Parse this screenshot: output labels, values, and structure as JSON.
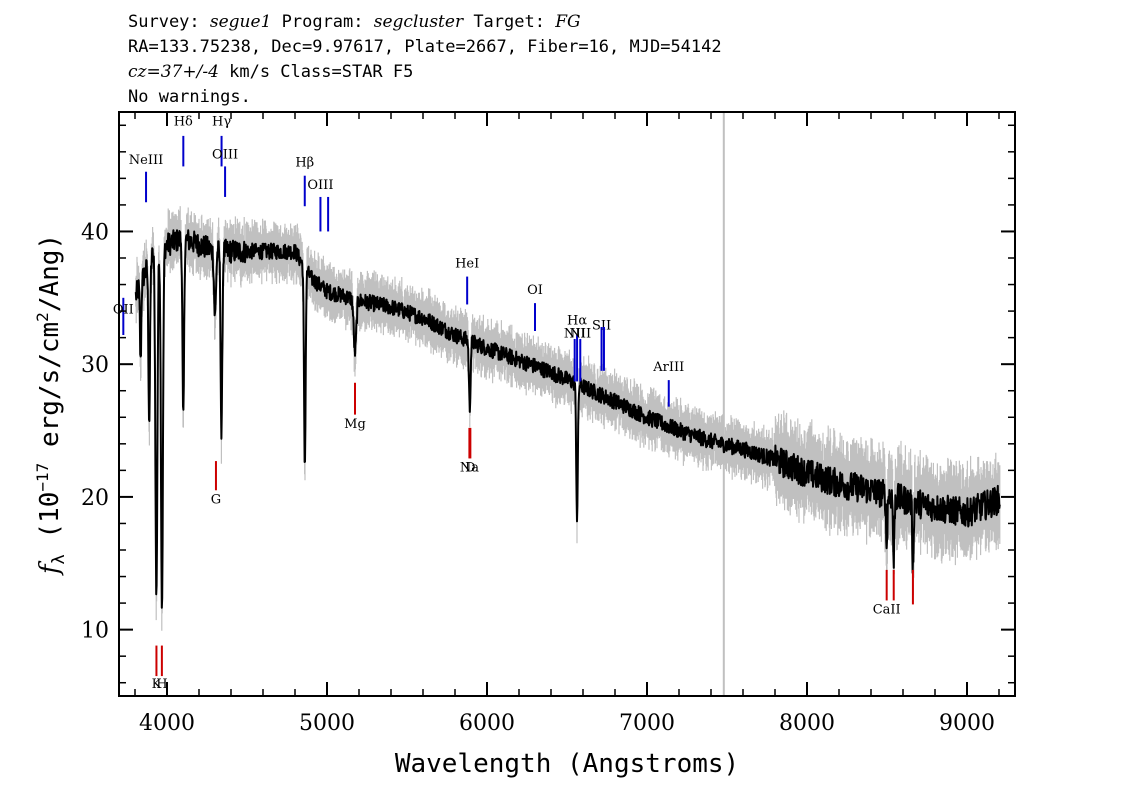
{
  "header": {
    "line1": {
      "survey_label": "Survey: ",
      "survey": "segue1",
      "program_label": " Program: ",
      "program": "segcluster",
      "target_label": " Target: ",
      "target": "FG"
    },
    "line2": "RA=133.75238, Dec=9.97617, Plate=2667, Fiber=16, MJD=54142",
    "line3": {
      "cz": "cz=37+/-4",
      "rest": " km/s Class=STAR F5"
    },
    "line4": "No warnings."
  },
  "chart_data": {
    "type": "line",
    "xlabel": "Wavelength (Angstroms)",
    "ylabel_prefix": "f",
    "ylabel_sub": "λ",
    "ylabel_text": " (10",
    "ylabel_exp": "−17",
    "ylabel_units": " erg/s/cm",
    "ylabel_units_exp": "2",
    "ylabel_tail": "/Ang)",
    "xlim": [
      3700,
      9300
    ],
    "ylim": [
      5,
      49
    ],
    "x_ticks": [
      4000,
      5000,
      6000,
      7000,
      8000,
      9000
    ],
    "y_ticks": [
      10,
      20,
      30,
      40
    ],
    "vertical_marker": 7480,
    "colors": {
      "spectrum": "#000000",
      "error": "#c0c0c0",
      "emission": "#0000cc",
      "absorption": "#cc0000",
      "marker": "#c0c0c0"
    },
    "continuum": [
      [
        3800,
        35
      ],
      [
        3900,
        38
      ],
      [
        4000,
        39
      ],
      [
        4100,
        39.5
      ],
      [
        4200,
        39
      ],
      [
        4300,
        38.5
      ],
      [
        4400,
        38.5
      ],
      [
        4600,
        38.5
      ],
      [
        4800,
        38.5
      ],
      [
        4900,
        36.5
      ],
      [
        5000,
        35.5
      ],
      [
        5200,
        34.8
      ],
      [
        5400,
        34.3
      ],
      [
        5600,
        33.5
      ],
      [
        5800,
        32.2
      ],
      [
        6000,
        31.2
      ],
      [
        6200,
        30.3
      ],
      [
        6400,
        29.4
      ],
      [
        6600,
        28.3
      ],
      [
        6800,
        27.2
      ],
      [
        7000,
        26
      ],
      [
        7200,
        25
      ],
      [
        7400,
        24.2
      ],
      [
        7600,
        23.6
      ],
      [
        7800,
        22.8
      ],
      [
        8000,
        21.8
      ],
      [
        8200,
        21
      ],
      [
        8400,
        20.5
      ],
      [
        8600,
        19.8
      ],
      [
        8800,
        19.2
      ],
      [
        9000,
        18.8
      ],
      [
        9200,
        19.8
      ]
    ],
    "absorption_features": [
      {
        "x": 3835,
        "depth": 6,
        "width": 4
      },
      {
        "x": 3889,
        "depth": 12,
        "width": 5
      },
      {
        "x": 3933.7,
        "depth": 26,
        "width": 6
      },
      {
        "x": 3968.5,
        "depth": 27,
        "width": 6
      },
      {
        "x": 4101.7,
        "depth": 14,
        "width": 5
      },
      {
        "x": 4300,
        "depth": 5,
        "width": 6
      },
      {
        "x": 4340.5,
        "depth": 14,
        "width": 5
      },
      {
        "x": 4861.3,
        "depth": 15,
        "width": 5
      },
      {
        "x": 5175,
        "depth": 4,
        "width": 8
      },
      {
        "x": 5892,
        "depth": 5,
        "width": 5
      },
      {
        "x": 6562.8,
        "depth": 10,
        "width": 5
      },
      {
        "x": 8498,
        "depth": 4,
        "width": 4
      },
      {
        "x": 8542,
        "depth": 5,
        "width": 4
      },
      {
        "x": 8662,
        "depth": 5,
        "width": 4
      }
    ],
    "emission_lines": [
      {
        "name": "OII",
        "x": 3727,
        "y_top": 35,
        "y_bot": 32.2,
        "label_y": 33.8
      },
      {
        "name": "NeIII",
        "x": 3869,
        "y_top": 44.5,
        "y_bot": 42.2,
        "label_y": 45.1
      },
      {
        "name": "Hδ",
        "x": 4102,
        "y_top": 47.2,
        "y_bot": 44.9,
        "label_y": 48.0
      },
      {
        "name": "Hγ",
        "x": 4341,
        "y_top": 47.2,
        "y_bot": 44.9,
        "label_y": 48.0
      },
      {
        "name": "OIII",
        "x": 4363,
        "y_top": 44.9,
        "y_bot": 42.6,
        "label_y": 45.5
      },
      {
        "name": "Hβ",
        "x": 4861,
        "y_top": 44.2,
        "y_bot": 41.9,
        "label_y": 44.9
      },
      {
        "name": "OIII",
        "x": 4959,
        "y_top": 42.6,
        "y_bot": 40.0,
        "label_y": 43.2
      },
      {
        "name": "",
        "x": 5007,
        "y_top": 42.6,
        "y_bot": 40.0,
        "label_y": 43.2
      },
      {
        "name": "HeI",
        "x": 5876,
        "y_top": 36.6,
        "y_bot": 34.5,
        "label_y": 37.3
      },
      {
        "name": "OI",
        "x": 6300,
        "y_top": 34.6,
        "y_bot": 32.5,
        "label_y": 35.3
      },
      {
        "name": "NII",
        "x": 6548,
        "y_top": 31.9,
        "y_bot": 28.7,
        "label_y": 32.0
      },
      {
        "name": "Hα",
        "x": 6563,
        "y_top": 32.2,
        "y_bot": 28.7,
        "label_y": 33.0
      },
      {
        "name": "NII",
        "x": 6583,
        "y_top": 31.9,
        "y_bot": 28.7,
        "label_y": 32.0
      },
      {
        "name": "SII",
        "x": 6716,
        "y_top": 32.8,
        "y_bot": 29.5,
        "label_y": 32.6
      },
      {
        "name": "",
        "x": 6731,
        "y_top": 32.8,
        "y_bot": 29.5,
        "label_y": 32.6
      },
      {
        "name": "ArIII",
        "x": 7136,
        "y_top": 28.8,
        "y_bot": 26.8,
        "label_y": 29.5
      }
    ],
    "absorption_lines": [
      {
        "name": "K",
        "x": 3934,
        "y_top": 8.8,
        "y_bot": 6.5,
        "label_y": 5.6
      },
      {
        "name": "H",
        "x": 3968,
        "y_top": 8.8,
        "y_bot": 6.5,
        "label_y": 5.6
      },
      {
        "name": "G",
        "x": 4306,
        "y_top": 22.7,
        "y_bot": 20.5,
        "label_y": 19.5
      },
      {
        "name": "Mg",
        "x": 5175,
        "y_top": 28.6,
        "y_bot": 26.2,
        "label_y": 25.2
      },
      {
        "name": "Na",
        "x": 5890,
        "y_top": 25.2,
        "y_bot": 22.9,
        "label_y": 21.9
      },
      {
        "name": "D",
        "x": 5896,
        "y_top": 25.2,
        "y_bot": 22.9,
        "label_y": 21.9
      },
      {
        "name": "CaII",
        "x": 8498,
        "y_top": 14.5,
        "y_bot": 12.2,
        "label_y": 11.2
      },
      {
        "name": "",
        "x": 8542,
        "y_top": 14.5,
        "y_bot": 12.2,
        "label_y": 11.2
      },
      {
        "name": "",
        "x": 8662,
        "y_top": 14.5,
        "y_bot": 11.9,
        "label_y": 11.2
      }
    ]
  }
}
